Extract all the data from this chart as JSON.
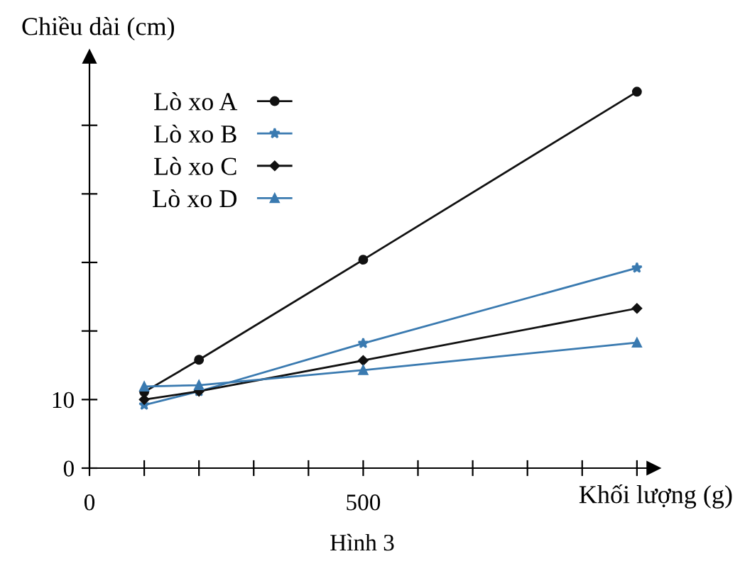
{
  "chart_data": {
    "type": "line",
    "xlabel": "Khối lượng (g)",
    "ylabel": "Chiều dài (cm)",
    "x": [
      100,
      200,
      500,
      1000
    ],
    "series": [
      {
        "name": "Lò xo A",
        "color": "#111111",
        "marker": "circle",
        "values": [
          11.1,
          15.8,
          30.4,
          54.9
        ]
      },
      {
        "name": "Lò xo B",
        "color": "#3a7ab0",
        "marker": "star",
        "values": [
          9.2,
          11.2,
          18.2,
          29.2
        ]
      },
      {
        "name": "Lò xo C",
        "color": "#111111",
        "marker": "diamond",
        "values": [
          10.0,
          11.2,
          15.7,
          23.3
        ]
      },
      {
        "name": "Lò xo D",
        "color": "#3a7ab0",
        "marker": "triangle",
        "values": [
          11.9,
          12.1,
          14.3,
          18.3
        ]
      }
    ],
    "xlim": [
      0,
      1030
    ],
    "ylim": [
      0,
      60
    ],
    "xticks": [
      0,
      {
        "value": 100,
        "label": null
      },
      {
        "value": 200,
        "label": null
      },
      {
        "value": 300,
        "label": null
      },
      {
        "value": 400,
        "label": null
      },
      500,
      {
        "value": 600,
        "label": null
      },
      {
        "value": 700,
        "label": null
      },
      {
        "value": 800,
        "label": null
      },
      {
        "value": 900,
        "label": null
      },
      {
        "value": 1000,
        "label": null
      }
    ],
    "yticks": [
      0,
      10,
      {
        "value": 20,
        "label": null
      },
      {
        "value": 30,
        "label": null
      },
      {
        "value": 40,
        "label": null
      },
      {
        "value": 50,
        "label": null
      }
    ],
    "grid": false,
    "legend": "top left",
    "line_style": "solid",
    "annotations": [
      "Hình 3"
    ]
  }
}
